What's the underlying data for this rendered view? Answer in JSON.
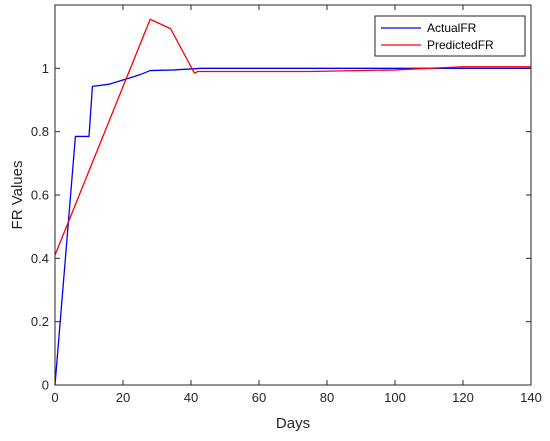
{
  "chart_data": {
    "type": "line",
    "xlabel": "Days",
    "ylabel": "FR Values",
    "xlim": [
      0,
      140
    ],
    "ylim": [
      0,
      1.2
    ],
    "xticks": [
      0,
      20,
      40,
      60,
      80,
      100,
      120,
      140
    ],
    "yticks": [
      0,
      0.2,
      0.4,
      0.6,
      0.8,
      1
    ],
    "grid": false,
    "legend_position": "top-right",
    "series": [
      {
        "name": "ActualFR",
        "color": "#0000ff",
        "x": [
          0,
          6,
          10,
          11,
          16,
          20,
          25,
          28,
          35,
          43,
          60,
          80,
          100,
          120,
          140
        ],
        "y": [
          0,
          0.785,
          0.785,
          0.943,
          0.95,
          0.963,
          0.98,
          0.993,
          0.995,
          1.0,
          1.0,
          1.0,
          1.0,
          1.0,
          1.0
        ]
      },
      {
        "name": "PredictedFR",
        "color": "#ff0000",
        "x": [
          0,
          28,
          34,
          41,
          42,
          60,
          75,
          100,
          120,
          140
        ],
        "y": [
          0.41,
          1.155,
          1.125,
          0.985,
          0.99,
          0.99,
          0.99,
          0.995,
          1.005,
          1.005
        ]
      }
    ]
  }
}
